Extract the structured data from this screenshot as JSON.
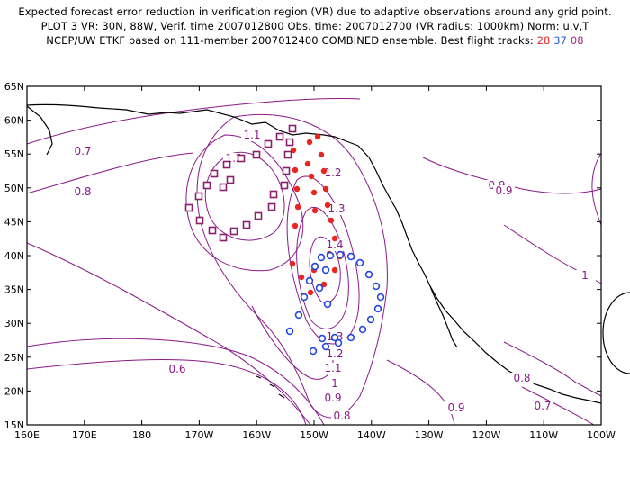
{
  "header": {
    "line1": "Expected forecast error reduction in verification region (VR) due to adaptive observations around any grid point.",
    "line2": "PLOT 3 VR: 30N, 88W, Verif. time 2007012800 Obs. time: 2007012700 (VR radius: 1000km) Norm: u,v,T",
    "line3_prefix": "NCEP/UW ETKF based on 111-member 2007012400 COMBINED ensemble.  Best flight tracks:",
    "track_red": "28",
    "track_blue": "37",
    "track_purple": "08"
  },
  "map": {
    "lat_labels": [
      "65N",
      "60N",
      "55N",
      "50N",
      "45N",
      "40N",
      "35N",
      "30N",
      "25N",
      "20N",
      "15N"
    ],
    "lon_labels": [
      "160E",
      "170E",
      "180",
      "170W",
      "160W",
      "150W",
      "140W",
      "130W",
      "120W",
      "110W",
      "100W"
    ],
    "contour_color": "#8b1a8b",
    "coast_color": "#000000"
  },
  "contour_labels": [
    {
      "text": "0.7"
    },
    {
      "text": "0.8"
    },
    {
      "text": "1.1"
    },
    {
      "text": "1.2"
    },
    {
      "text": "1.2"
    },
    {
      "text": "1.3"
    },
    {
      "text": "1.4"
    },
    {
      "text": "1.3"
    },
    {
      "text": "1.2"
    },
    {
      "text": "1.1"
    },
    {
      "text": "1"
    },
    {
      "text": "0.9"
    },
    {
      "text": "0.8"
    },
    {
      "text": "0.6"
    },
    {
      "text": "0.9"
    },
    {
      "text": "0.9"
    },
    {
      "text": "1"
    },
    {
      "text": "0.8"
    },
    {
      "text": "0.9"
    },
    {
      "text": "0.7"
    }
  ],
  "tracks": {
    "red": {
      "color": "#e8261f",
      "style": "dot"
    },
    "blue": {
      "color": "#2447e0",
      "style": "ring"
    },
    "purple": {
      "color": "#8a1f6e",
      "style": "square"
    }
  }
}
